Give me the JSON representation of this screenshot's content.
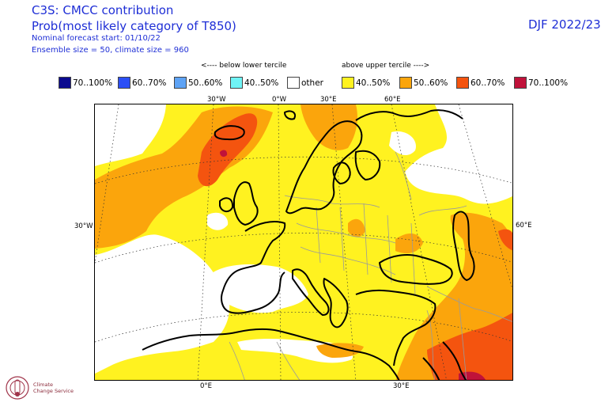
{
  "header": {
    "title": "C3S: CMCC contribution",
    "subtitle": "Prob(most likely category of T850)",
    "forecast_start": "Nominal forecast start: 01/10/22",
    "ensemble": "Ensemble size = 50, climate size = 960",
    "season": "DJF 2022/23"
  },
  "legend": {
    "below_label": "<---- below lower tercile",
    "above_label": "above upper tercile ---->",
    "items": [
      {
        "label": "70..100%",
        "color": "#0b0a8f"
      },
      {
        "label": "60..70%",
        "color": "#2c4ff6"
      },
      {
        "label": "50..60%",
        "color": "#5ea3f5"
      },
      {
        "label": "40..50%",
        "color": "#6ff4f6"
      },
      {
        "label": "other",
        "color": "#ffffff"
      },
      {
        "label": "40..50%",
        "color": "#fff220"
      },
      {
        "label": "50..60%",
        "color": "#fba50c"
      },
      {
        "label": "60..70%",
        "color": "#f4540f"
      },
      {
        "label": "70..100%",
        "color": "#c0123a"
      }
    ]
  },
  "map": {
    "ticks_top": [
      "30°W",
      "0°W",
      "30°E",
      "60°E"
    ],
    "ticks_bottom": [
      "0°E",
      "30°E"
    ],
    "tick_left": "30°W",
    "tick_right": "60°E"
  },
  "logo": {
    "line1": "Climate",
    "line2": "Change Service"
  }
}
